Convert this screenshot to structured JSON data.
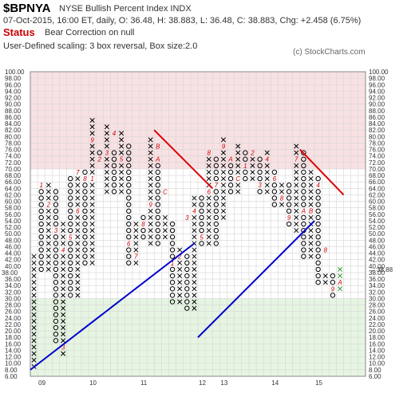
{
  "header": {
    "symbol": "$BPNYA",
    "name": "NYSE Bullish Percent Index  INDX",
    "quote": "07-Oct-2015, 16:00 ET, daily, O: 36.48, H: 38.883, L: 36.48, C: 38.883, Chg: +2.458 (6.75%)",
    "status_label": "Status",
    "status_value": "Bear Correction on null",
    "scaling": "User-Defined scaling: 3 box reversal, Box size:2.0",
    "copyright": "(c) StockCharts.com"
  },
  "colors": {
    "overbought_zone": "#f8e1e3",
    "oversold_zone": "#e6f5e2",
    "grid": "#d6d6d6",
    "trendline_support": "#0000cc",
    "trendline_resistance": "#dd0000",
    "month_label": "#cc0000",
    "last_column": "#2e9a2e",
    "price_marker": "#cc0000"
  },
  "chart_data": {
    "type": "point-and-figure",
    "box_size": 2,
    "reversal": 3,
    "ylim": [
      6,
      100
    ],
    "y_ticks": [
      "6.00",
      "8.00",
      "10.00",
      "12.00",
      "14.00",
      "16.00",
      "18.00",
      "20.00",
      "22.00",
      "24.00",
      "26.00",
      "28.00",
      "30.00",
      "32.00",
      "34.00",
      "36.00",
      "38.00",
      "40.00",
      "42.00",
      "44.00",
      "46.00",
      "48.00",
      "50.00",
      "52.00",
      "54.00",
      "56.00",
      "58.00",
      "60.00",
      "62.00",
      "64.00",
      "66.00",
      "68.00",
      "70.00",
      "72.00",
      "74.00",
      "76.00",
      "78.00",
      "80.00",
      "82.00",
      "84.00",
      "86.00",
      "88.00",
      "90.00",
      "92.00",
      "94.00",
      "96.00",
      "98.00",
      "100.00"
    ],
    "zones": {
      "overbought_from": 70,
      "oversold_to": 30
    },
    "current_price_label": "38.88",
    "left_marker_label": "38.00",
    "x_labels": [
      {
        "label": "09",
        "col": 1
      },
      {
        "label": "10",
        "col": 8
      },
      {
        "label": "11",
        "col": 15
      },
      {
        "label": "12",
        "col": 23
      },
      {
        "label": "13",
        "col": 26
      },
      {
        "label": "14",
        "col": 33
      },
      {
        "label": "15",
        "col": 39
      }
    ],
    "columns": [
      {
        "t": "X",
        "lo": 8,
        "hi": 42
      },
      {
        "t": "O",
        "lo": 38,
        "hi": 64
      },
      {
        "t": "X",
        "lo": 38,
        "hi": 64
      },
      {
        "t": "O",
        "lo": 16,
        "hi": 62
      },
      {
        "t": "X",
        "lo": 12,
        "hi": 52
      },
      {
        "t": "O",
        "lo": 30,
        "hi": 66
      },
      {
        "t": "X",
        "lo": 30,
        "hi": 68
      },
      {
        "t": "O",
        "lo": 40,
        "hi": 68
      },
      {
        "t": "X",
        "lo": 40,
        "hi": 84
      },
      {
        "t": "O",
        "lo": 72,
        "hi": 74
      },
      {
        "t": "X",
        "lo": 62,
        "hi": 82
      },
      {
        "t": "O",
        "lo": 62,
        "hi": 74
      },
      {
        "t": "X",
        "lo": 62,
        "hi": 80
      },
      {
        "t": "O",
        "lo": 40,
        "hi": 76
      },
      {
        "t": "X",
        "lo": 40,
        "hi": 52
      },
      {
        "t": "O",
        "lo": 48,
        "hi": 54
      },
      {
        "t": "X",
        "lo": 46,
        "hi": 78
      },
      {
        "t": "O",
        "lo": 46,
        "hi": 72
      },
      {
        "t": "X",
        "lo": 48,
        "hi": 54
      },
      {
        "t": "O",
        "lo": 28,
        "hi": 52
      },
      {
        "t": "X",
        "lo": 28,
        "hi": 44
      },
      {
        "t": "O",
        "lo": 26,
        "hi": 42
      },
      {
        "t": "X",
        "lo": 26,
        "hi": 60
      },
      {
        "t": "O",
        "lo": 46,
        "hi": 60
      },
      {
        "t": "X",
        "lo": 46,
        "hi": 74
      },
      {
        "t": "O",
        "lo": 46,
        "hi": 72
      },
      {
        "t": "X",
        "lo": 54,
        "hi": 78
      },
      {
        "t": "O",
        "lo": 62,
        "hi": 72
      },
      {
        "t": "X",
        "lo": 62,
        "hi": 76
      },
      {
        "t": "O",
        "lo": 66,
        "hi": 74
      },
      {
        "t": "X",
        "lo": 66,
        "hi": 72
      },
      {
        "t": "O",
        "lo": 62,
        "hi": 72
      },
      {
        "t": "X",
        "lo": 62,
        "hi": 74
      },
      {
        "t": "O",
        "lo": 58,
        "hi": 68
      },
      {
        "t": "X",
        "lo": 58,
        "hi": 64
      },
      {
        "t": "O",
        "lo": 52,
        "hi": 64
      },
      {
        "t": "X",
        "lo": 50,
        "hi": 76
      },
      {
        "t": "O",
        "lo": 42,
        "hi": 74
      },
      {
        "t": "X",
        "lo": 42,
        "hi": 68
      },
      {
        "t": "O",
        "lo": 34,
        "hi": 66
      },
      {
        "t": "X",
        "lo": 34,
        "hi": 36
      },
      {
        "t": "O",
        "lo": 30,
        "hi": 36
      },
      {
        "t": "X",
        "lo": 32,
        "hi": 38
      }
    ],
    "month_marks": [
      {
        "col": 1,
        "v": 64,
        "label": "1"
      },
      {
        "col": 2,
        "v": 58,
        "label": "2"
      },
      {
        "col": 3,
        "v": 50,
        "label": "3"
      },
      {
        "col": 4,
        "v": 44,
        "label": "4"
      },
      {
        "col": 4,
        "v": 14,
        "label": "3"
      },
      {
        "col": 5,
        "v": 48,
        "label": "5"
      },
      {
        "col": 6,
        "v": 56,
        "label": "6"
      },
      {
        "col": 6,
        "v": 68,
        "label": "7"
      },
      {
        "col": 7,
        "v": 66,
        "label": "8"
      },
      {
        "col": 8,
        "v": 78,
        "label": "9"
      },
      {
        "col": 8,
        "v": 66,
        "label": "1"
      },
      {
        "col": 9,
        "v": 72,
        "label": "2"
      },
      {
        "col": 10,
        "v": 74,
        "label": "3"
      },
      {
        "col": 11,
        "v": 80,
        "label": "4"
      },
      {
        "col": 12,
        "v": 72,
        "label": "5"
      },
      {
        "col": 13,
        "v": 46,
        "label": "6"
      },
      {
        "col": 14,
        "v": 42,
        "label": "7"
      },
      {
        "col": 15,
        "v": 52,
        "label": "8"
      },
      {
        "col": 16,
        "v": 58,
        "label": "9"
      },
      {
        "col": 17,
        "v": 72,
        "label": "A"
      },
      {
        "col": 17,
        "v": 76,
        "label": "B"
      },
      {
        "col": 18,
        "v": 62,
        "label": "C"
      },
      {
        "col": 19,
        "v": 40,
        "label": "1"
      },
      {
        "col": 20,
        "v": 42,
        "label": "2"
      },
      {
        "col": 21,
        "v": 54,
        "label": "3"
      },
      {
        "col": 22,
        "v": 56,
        "label": "4"
      },
      {
        "col": 23,
        "v": 48,
        "label": "5"
      },
      {
        "col": 24,
        "v": 62,
        "label": "6"
      },
      {
        "col": 24,
        "v": 74,
        "label": "8"
      },
      {
        "col": 25,
        "v": 64,
        "label": "7"
      },
      {
        "col": 26,
        "v": 76,
        "label": "9"
      },
      {
        "col": 27,
        "v": 72,
        "label": "A"
      },
      {
        "col": 28,
        "v": 66,
        "label": "C"
      },
      {
        "col": 29,
        "v": 70,
        "label": "1"
      },
      {
        "col": 30,
        "v": 74,
        "label": "2"
      },
      {
        "col": 31,
        "v": 64,
        "label": "3"
      },
      {
        "col": 32,
        "v": 72,
        "label": "4"
      },
      {
        "col": 33,
        "v": 66,
        "label": "6"
      },
      {
        "col": 34,
        "v": 60,
        "label": "8"
      },
      {
        "col": 35,
        "v": 54,
        "label": "9"
      },
      {
        "col": 36,
        "v": 72,
        "label": "7"
      },
      {
        "col": 37,
        "v": 56,
        "label": "A"
      },
      {
        "col": 38,
        "v": 56,
        "label": "B"
      },
      {
        "col": 39,
        "v": 64,
        "label": "4"
      },
      {
        "col": 40,
        "v": 44,
        "label": "8"
      },
      {
        "col": 41,
        "v": 32,
        "label": "9"
      },
      {
        "col": 42,
        "v": 34,
        "label": "A"
      }
    ],
    "trendlines": [
      {
        "kind": "support",
        "from": {
          "col": -0.5,
          "v": 7
        },
        "to": {
          "col": 22,
          "v": 46
        }
      },
      {
        "kind": "support",
        "from": {
          "col": 22.5,
          "v": 17
        },
        "to": {
          "col": 38.5,
          "v": 53
        }
      },
      {
        "kind": "resistance",
        "from": {
          "col": 16.5,
          "v": 81
        },
        "to": {
          "col": 24.5,
          "v": 63
        }
      },
      {
        "kind": "resistance",
        "from": {
          "col": 36.5,
          "v": 75
        },
        "to": {
          "col": 42.5,
          "v": 61
        }
      }
    ]
  }
}
